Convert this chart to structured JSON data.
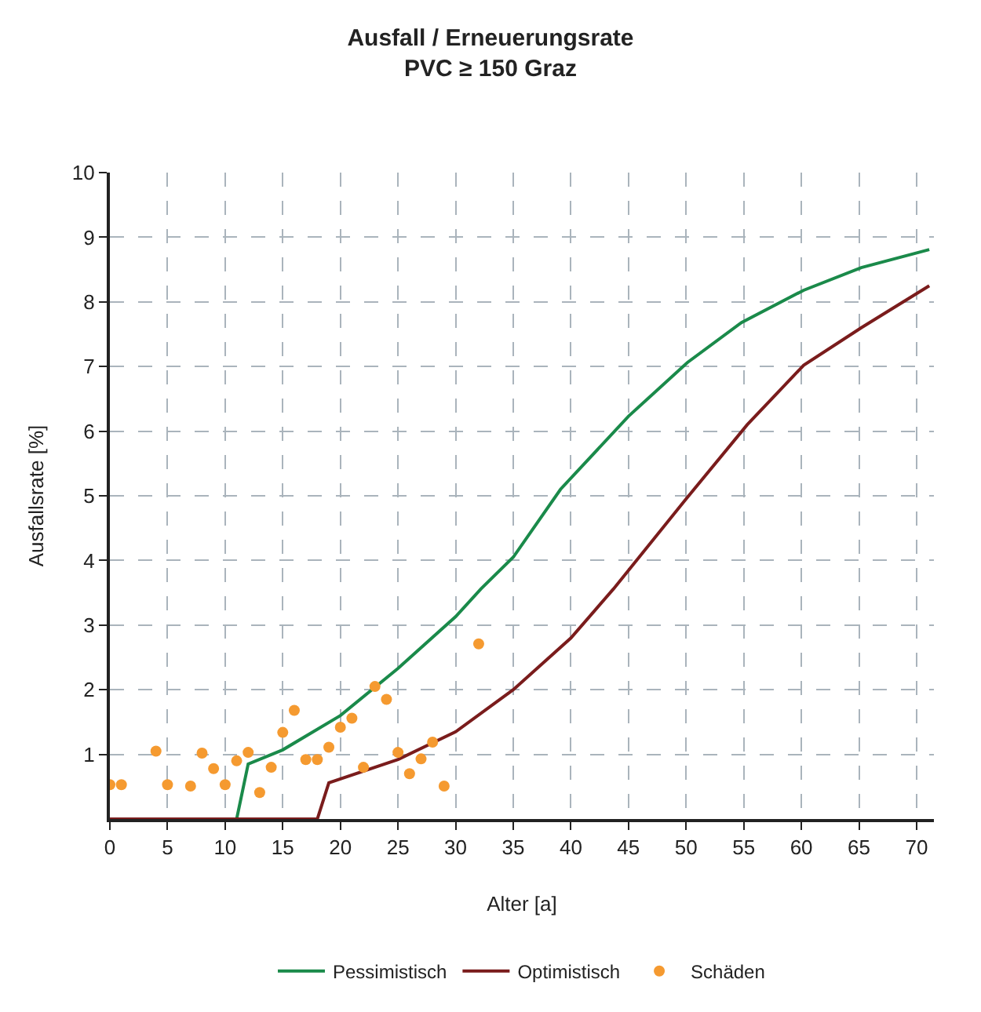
{
  "chart_data": {
    "type": "line",
    "title": "Ausfall / Erneuerungsrate",
    "subtitle": "PVC ≥ 150 Graz",
    "xlabel": "Alter [a]",
    "ylabel": "Ausfallsrate [%]",
    "xlim": [
      0,
      71.5
    ],
    "ylim": [
      0,
      10
    ],
    "xticks": [
      0,
      5,
      10,
      15,
      20,
      25,
      30,
      35,
      40,
      45,
      50,
      55,
      60,
      65,
      70
    ],
    "yticks": [
      1,
      2,
      3,
      4,
      5,
      6,
      7,
      8,
      9,
      10
    ],
    "grid": true,
    "legend": "bottom",
    "line_style": "solid",
    "series": [
      {
        "name": "Pessimistisch",
        "marker": "none",
        "color": "#1a8a4a",
        "x": [
          0,
          11,
          12,
          15,
          20,
          25,
          30,
          32.2,
          35,
          39.1,
          45,
          50.1,
          54.8,
          60.2,
          65.2,
          71.1
        ],
        "values": [
          0,
          0,
          0.85,
          1.07,
          1.6,
          2.33,
          3.13,
          3.56,
          4.05,
          5.1,
          6.23,
          7.06,
          7.68,
          8.18,
          8.53,
          8.81
        ]
      },
      {
        "name": "Optimistisch",
        "marker": "none",
        "color": "#7a1c1c",
        "x": [
          0,
          18,
          19,
          25,
          30,
          35,
          40,
          43.7,
          49.9,
          55.3,
          60.2,
          65.2,
          71.1
        ],
        "values": [
          0,
          0,
          0.56,
          0.92,
          1.35,
          2.0,
          2.8,
          3.56,
          4.93,
          6.1,
          7.02,
          7.6,
          8.25
        ]
      },
      {
        "name": "Schäden",
        "type": "scatter",
        "marker": "circle",
        "color": "#f59a30",
        "x": [
          0,
          1,
          4,
          5,
          7,
          8,
          9,
          10,
          11,
          12,
          13,
          14,
          15,
          16,
          17,
          18,
          19,
          20,
          21,
          22,
          23,
          24,
          25,
          26,
          27,
          28,
          29,
          32
        ],
        "values": [
          0.53,
          0.53,
          1.05,
          0.53,
          0.51,
          1.02,
          0.78,
          0.53,
          0.9,
          1.03,
          0.41,
          0.8,
          1.34,
          1.68,
          0.92,
          0.92,
          1.11,
          1.42,
          1.56,
          0.8,
          2.05,
          1.85,
          1.03,
          0.7,
          0.93,
          1.19,
          0.51,
          2.71
        ]
      }
    ]
  }
}
